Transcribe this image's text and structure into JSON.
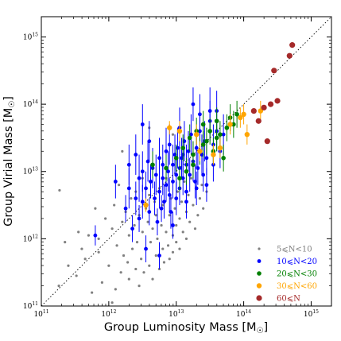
{
  "chart_data": {
    "type": "scatter",
    "title": "",
    "xlabel": "Group Luminosity Mass [M",
    "ylabel": "Group Virial Mass [M",
    "sun_symbol": "☉",
    "axis_suffix": "]",
    "xscale": "log",
    "yscale": "log",
    "xlim": [
      100000000000.0,
      2000000000000000.0
    ],
    "ylim": [
      100000000000.0,
      2000000000000000.0
    ],
    "grid": false,
    "legend_position": "lower-right",
    "x_ticks": [
      {
        "base": "10",
        "exp": "11"
      },
      {
        "base": "10",
        "exp": "12"
      },
      {
        "base": "10",
        "exp": "13"
      },
      {
        "base": "10",
        "exp": "14"
      },
      {
        "base": "10",
        "exp": "15"
      }
    ],
    "y_ticks": [
      {
        "base": "10",
        "exp": "11"
      },
      {
        "base": "10",
        "exp": "12"
      },
      {
        "base": "10",
        "exp": "13"
      },
      {
        "base": "10",
        "exp": "14"
      },
      {
        "base": "10",
        "exp": "15"
      }
    ],
    "reference_line": {
      "style": "dotted",
      "color": "#000000",
      "relation": "y = x"
    },
    "series": [
      {
        "name": "5⩽N<10",
        "color": "#808080",
        "marker_size": 1.6,
        "points": [
          [
            11.26,
            11.3
          ],
          [
            11.35,
            11.95
          ],
          [
            11.27,
            12.72
          ],
          [
            11.4,
            11.6
          ],
          [
            11.52,
            11.45
          ],
          [
            11.55,
            12.1
          ],
          [
            11.6,
            11.85
          ],
          [
            11.65,
            11.7
          ],
          [
            11.7,
            12.05
          ],
          [
            11.75,
            11.2
          ],
          [
            11.8,
            12.45
          ],
          [
            11.85,
            11.8
          ],
          [
            11.85,
            12.0
          ],
          [
            11.9,
            11.35
          ],
          [
            11.95,
            12.3
          ],
          [
            12.0,
            11.6
          ],
          [
            12.05,
            12.15
          ],
          [
            12.08,
            12.5
          ],
          [
            12.1,
            11.25
          ],
          [
            12.12,
            11.9
          ],
          [
            12.15,
            12.8
          ],
          [
            12.18,
            11.5
          ],
          [
            12.2,
            12.25
          ],
          [
            12.22,
            11.75
          ],
          [
            12.25,
            12.4
          ],
          [
            12.28,
            11.65
          ],
          [
            12.3,
            12.05
          ],
          [
            12.3,
            11.4
          ],
          [
            12.33,
            12.6
          ],
          [
            12.35,
            11.85
          ],
          [
            12.38,
            12.2
          ],
          [
            12.4,
            11.55
          ],
          [
            12.4,
            12.7
          ],
          [
            12.42,
            11.95
          ],
          [
            12.45,
            11.3
          ],
          [
            12.45,
            12.35
          ],
          [
            12.48,
            11.7
          ],
          [
            12.5,
            12.1
          ],
          [
            12.5,
            12.9
          ],
          [
            12.52,
            11.5
          ],
          [
            12.55,
            12.45
          ],
          [
            12.55,
            11.85
          ],
          [
            12.58,
            12.25
          ],
          [
            12.6,
            11.6
          ],
          [
            12.6,
            12.65
          ],
          [
            12.62,
            11.95
          ],
          [
            12.65,
            12.15
          ],
          [
            12.65,
            11.4
          ],
          [
            12.68,
            12.55
          ],
          [
            12.7,
            11.75
          ],
          [
            12.7,
            12.35
          ],
          [
            12.72,
            12.0
          ],
          [
            12.75,
            11.55
          ],
          [
            12.75,
            12.75
          ],
          [
            12.78,
            12.2
          ],
          [
            12.8,
            11.85
          ],
          [
            12.8,
            12.5
          ],
          [
            12.82,
            11.65
          ],
          [
            12.85,
            12.1
          ],
          [
            12.85,
            12.9
          ],
          [
            12.88,
            11.9
          ],
          [
            12.9,
            12.35
          ],
          [
            12.9,
            11.7
          ],
          [
            12.92,
            12.6
          ],
          [
            12.95,
            12.05
          ],
          [
            12.95,
            11.8
          ],
          [
            12.98,
            12.45
          ],
          [
            13.0,
            12.2
          ],
          [
            13.0,
            11.95
          ],
          [
            13.02,
            12.7
          ],
          [
            13.05,
            12.3
          ],
          [
            13.05,
            11.85
          ],
          [
            13.08,
            12.55
          ],
          [
            13.1,
            12.1
          ],
          [
            13.12,
            12.85
          ],
          [
            13.15,
            12.4
          ],
          [
            13.15,
            12.0
          ],
          [
            13.18,
            12.65
          ],
          [
            13.2,
            12.25
          ],
          [
            13.22,
            12.9
          ],
          [
            13.25,
            12.5
          ],
          [
            13.28,
            12.15
          ],
          [
            13.3,
            12.75
          ],
          [
            13.32,
            12.35
          ],
          [
            13.35,
            12.6
          ],
          [
            13.38,
            12.8
          ],
          [
            13.4,
            12.45
          ],
          [
            13.45,
            12.7
          ],
          [
            12.2,
            13.3
          ],
          [
            12.05,
            11.05
          ],
          [
            12.95,
            13.55
          ],
          [
            12.6,
            13.65
          ]
        ]
      },
      {
        "name": "10⩽N<20",
        "color": "#0000ff",
        "marker_size": 2.4,
        "points": [
          [
            11.8,
            12.05,
            0.15
          ],
          [
            12.1,
            12.85,
            0.25
          ],
          [
            12.25,
            12.45,
            0.2
          ],
          [
            12.3,
            12.75,
            0.3
          ],
          [
            12.35,
            12.15,
            0.2
          ],
          [
            12.4,
            12.6,
            0.25
          ],
          [
            12.45,
            12.9,
            0.35
          ],
          [
            12.45,
            12.3,
            0.2
          ],
          [
            12.5,
            13.0,
            0.3
          ],
          [
            12.5,
            12.55,
            0.25
          ],
          [
            12.55,
            11.85,
            0.2
          ],
          [
            12.55,
            12.75,
            0.25
          ],
          [
            12.58,
            13.15,
            0.3
          ],
          [
            12.6,
            12.4,
            0.2
          ],
          [
            12.62,
            12.85,
            0.25
          ],
          [
            12.65,
            13.05,
            0.3
          ],
          [
            12.68,
            12.6,
            0.25
          ],
          [
            12.7,
            12.95,
            0.3
          ],
          [
            12.72,
            12.25,
            0.2
          ],
          [
            12.75,
            13.2,
            0.3
          ],
          [
            12.75,
            12.7,
            0.25
          ],
          [
            12.78,
            12.45,
            0.2
          ],
          [
            12.8,
            13.1,
            0.3
          ],
          [
            12.8,
            12.9,
            0.25
          ],
          [
            12.82,
            12.55,
            0.25
          ],
          [
            12.85,
            13.3,
            0.35
          ],
          [
            12.85,
            12.8,
            0.25
          ],
          [
            12.88,
            13.0,
            0.3
          ],
          [
            12.9,
            12.65,
            0.25
          ],
          [
            12.9,
            13.4,
            0.3
          ],
          [
            12.92,
            12.4,
            0.25
          ],
          [
            12.95,
            13.1,
            0.3
          ],
          [
            12.95,
            12.85,
            0.25
          ],
          [
            12.98,
            13.25,
            0.3
          ],
          [
            13.0,
            12.95,
            0.25
          ],
          [
            13.0,
            12.6,
            0.25
          ],
          [
            13.02,
            13.35,
            0.3
          ],
          [
            13.05,
            13.05,
            0.3
          ],
          [
            13.05,
            12.75,
            0.25
          ],
          [
            13.08,
            13.2,
            0.3
          ],
          [
            13.1,
            12.9,
            0.25
          ],
          [
            13.12,
            13.45,
            0.3
          ],
          [
            13.15,
            13.1,
            0.3
          ],
          [
            13.15,
            12.7,
            0.25
          ],
          [
            13.18,
            13.3,
            0.3
          ],
          [
            13.2,
            12.95,
            0.25
          ],
          [
            13.22,
            13.55,
            0.3
          ],
          [
            13.25,
            13.15,
            0.3
          ],
          [
            13.28,
            12.85,
            0.25
          ],
          [
            13.3,
            13.35,
            0.3
          ],
          [
            13.32,
            13.05,
            0.25
          ],
          [
            13.35,
            13.6,
            0.3
          ],
          [
            13.38,
            13.25,
            0.3
          ],
          [
            13.4,
            12.95,
            0.25
          ],
          [
            13.42,
            13.45,
            0.3
          ],
          [
            13.45,
            13.2,
            0.25
          ],
          [
            13.5,
            13.75,
            0.3
          ],
          [
            13.55,
            13.4,
            0.3
          ],
          [
            13.6,
            13.6,
            0.3
          ],
          [
            13.65,
            13.3,
            0.25
          ],
          [
            13.7,
            13.55,
            0.3
          ],
          [
            13.5,
            13.9,
            0.35
          ],
          [
            13.55,
            13.1,
            0.25
          ],
          [
            13.45,
            12.8,
            0.25
          ],
          [
            12.75,
            11.75,
            0.2
          ],
          [
            12.6,
            13.45,
            0.3
          ],
          [
            12.4,
            13.25,
            0.3
          ],
          [
            12.3,
            13.1,
            0.3
          ],
          [
            12.5,
            13.7,
            0.3
          ],
          [
            13.05,
            13.65,
            0.3
          ],
          [
            13.15,
            12.55,
            0.25
          ],
          [
            12.95,
            12.2,
            0.2
          ],
          [
            13.25,
            14.0,
            0.25
          ],
          [
            13.35,
            13.85,
            0.3
          ],
          [
            13.6,
            13.9,
            0.3
          ],
          [
            13.1,
            13.25,
            0.25
          ],
          [
            13.3,
            12.75,
            0.25
          ]
        ]
      },
      {
        "name": "20⩽N<30",
        "color": "#008000",
        "marker_size": 2.8,
        "points": [
          [
            12.65,
            13.1,
            0.2
          ],
          [
            12.85,
            13.05,
            0.2
          ],
          [
            13.0,
            13.2,
            0.2
          ],
          [
            13.05,
            12.9,
            0.2
          ],
          [
            13.1,
            13.35,
            0.2
          ],
          [
            13.15,
            13.0,
            0.2
          ],
          [
            13.2,
            13.5,
            0.2
          ],
          [
            13.25,
            13.25,
            0.2
          ],
          [
            13.3,
            13.6,
            0.2
          ],
          [
            13.35,
            13.3,
            0.2
          ],
          [
            13.4,
            13.7,
            0.2
          ],
          [
            13.45,
            13.45,
            0.2
          ],
          [
            13.5,
            13.6,
            0.2
          ],
          [
            13.55,
            13.3,
            0.2
          ],
          [
            13.6,
            13.75,
            0.2
          ],
          [
            13.65,
            13.55,
            0.2
          ],
          [
            13.7,
            13.2,
            0.2
          ],
          [
            13.75,
            13.65,
            0.2
          ],
          [
            13.8,
            13.8,
            0.2
          ],
          [
            13.85,
            13.7,
            0.2
          ],
          [
            13.9,
            13.85,
            0.2
          ],
          [
            13.25,
            13.1,
            0.2
          ],
          [
            13.4,
            13.4,
            0.2
          ],
          [
            13.6,
            13.5,
            0.2
          ]
        ]
      },
      {
        "name": "30⩽N<60",
        "color": "#ffa500",
        "marker_size": 3.2,
        "points": [
          [
            12.9,
            13.65,
            0.1
          ],
          [
            13.05,
            13.6,
            0.15
          ],
          [
            13.3,
            13.55,
            0.15
          ],
          [
            13.35,
            13.3,
            0.15
          ],
          [
            13.55,
            13.25,
            0.15
          ],
          [
            13.65,
            13.35,
            0.15
          ],
          [
            13.8,
            13.7,
            0.15
          ],
          [
            13.95,
            13.8,
            0.15
          ],
          [
            14.0,
            13.85,
            0.15
          ],
          [
            14.25,
            13.9,
            0.15
          ],
          [
            14.05,
            13.55,
            0.15
          ],
          [
            12.55,
            12.5,
            0.1
          ]
        ]
      },
      {
        "name": "60⩽N",
        "color": "#a52a2a",
        "marker_size": 3.6,
        "points": [
          [
            14.45,
            14.5
          ],
          [
            14.68,
            14.72
          ],
          [
            14.72,
            14.88
          ],
          [
            14.15,
            13.9
          ],
          [
            14.3,
            13.95
          ],
          [
            14.4,
            14.0
          ],
          [
            14.5,
            14.05
          ],
          [
            14.22,
            13.75
          ],
          [
            14.35,
            13.45
          ]
        ]
      }
    ]
  }
}
